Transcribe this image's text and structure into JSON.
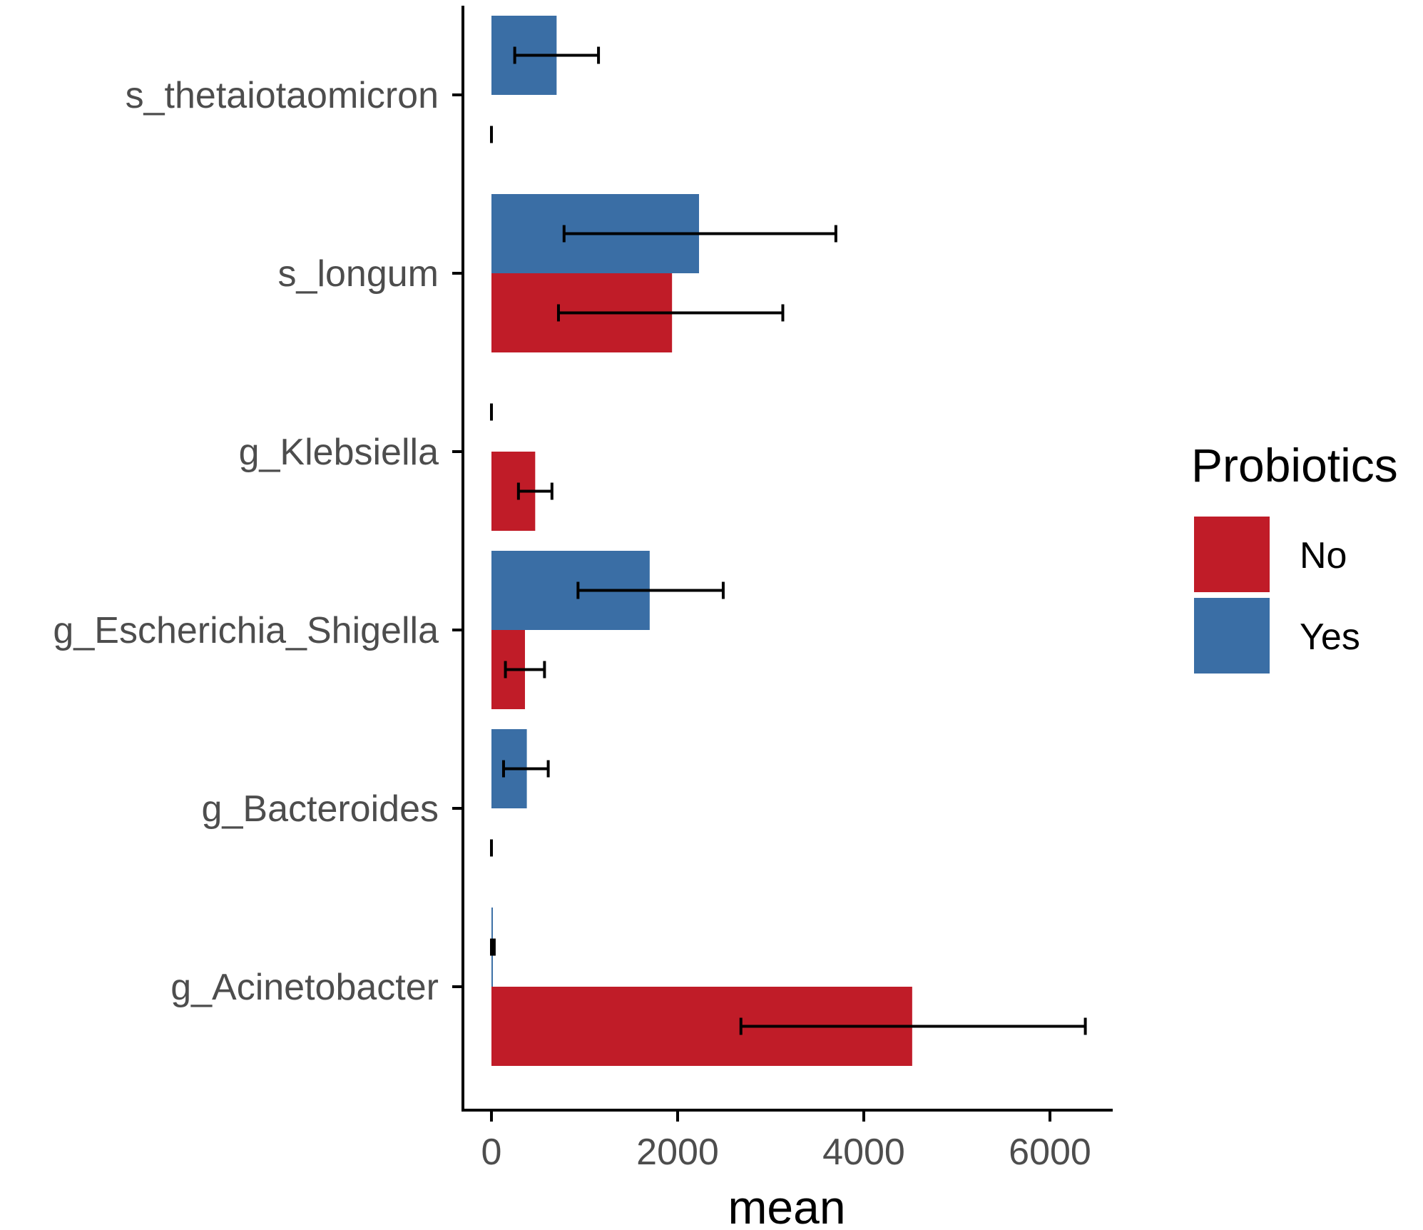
{
  "chart_data": {
    "type": "bar",
    "orientation": "horizontal",
    "title": "",
    "xlabel": "mean",
    "ylabel": "",
    "xlim": [
      -200,
      6600
    ],
    "x_ticks": [
      0,
      2000,
      4000,
      6000
    ],
    "x_tick_labels": [
      "0",
      "2000",
      "4000",
      "6000"
    ],
    "categories": [
      "s_thetaiotaomicron",
      "s_longum",
      "g_Klebsiella",
      "g_Escherichia_Shigella",
      "g_Bacteroides",
      "g_Acinetobacter"
    ],
    "legend": {
      "title": "Probiotics",
      "position": "right",
      "entries": [
        "No",
        "Yes"
      ]
    },
    "series": [
      {
        "name": "No",
        "color": "#c01c28",
        "values": [
          0,
          1940,
          470,
          360,
          0,
          4520
        ],
        "error_low": [
          0,
          720,
          290,
          150,
          0,
          2680
        ],
        "error_high": [
          0,
          3130,
          650,
          570,
          0,
          6380
        ]
      },
      {
        "name": "Yes",
        "color": "#3a6ea5",
        "values": [
          700,
          2230,
          0,
          1700,
          380,
          15
        ],
        "error_low": [
          250,
          780,
          0,
          930,
          130,
          0
        ],
        "error_high": [
          1150,
          3700,
          0,
          2490,
          610,
          30
        ]
      }
    ],
    "grid": false
  }
}
